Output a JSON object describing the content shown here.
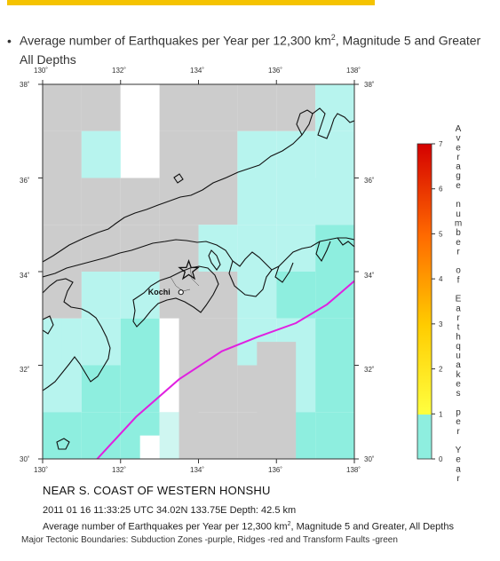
{
  "header": {
    "bullet": "•",
    "text_main": "Average number of Earthquakes per Year per 12,300 km",
    "text_sup": "2",
    "text_rest": ", Magnitude 5 and Greater",
    "text_line2": "All Depths"
  },
  "map": {
    "lon_labels_top": [
      "130˚",
      "132˚",
      "134˚",
      "136˚",
      "138˚"
    ],
    "lon_labels_bottom": [
      "130˚",
      "132˚",
      "134˚",
      "136˚",
      "138˚"
    ],
    "lat_labels_left": [
      "38˚",
      "36˚",
      "34˚",
      "32˚",
      "30˚"
    ],
    "lat_labels_right": [
      "38˚",
      "36˚",
      "34˚",
      "32˚",
      "30˚"
    ],
    "lon_range": [
      130,
      138
    ],
    "lat_range": [
      30,
      38
    ],
    "city": {
      "name": "Kochi",
      "lon": 133.55,
      "lat": 33.56
    },
    "epicenter": {
      "lon": 133.75,
      "lat": 34.02,
      "symbol": "star-icon"
    },
    "subduction_zone_color": "#e020e0",
    "subduction_zone": [
      [
        131.4,
        30.0
      ],
      [
        132.4,
        30.9
      ],
      [
        133.5,
        31.7
      ],
      [
        134.6,
        32.3
      ],
      [
        135.5,
        32.6
      ],
      [
        136.5,
        32.9
      ],
      [
        137.3,
        33.3
      ],
      [
        138.0,
        33.8
      ]
    ]
  },
  "colorbar": {
    "title_letters": [
      "A",
      "v",
      "e",
      "r",
      "a",
      "g",
      "e",
      "",
      "n",
      "u",
      "m",
      "b",
      "e",
      "r",
      "",
      "o",
      "f",
      "",
      "E",
      "a",
      "r",
      "t",
      "h",
      "q",
      "u",
      "a",
      "k",
      "e",
      "s",
      "",
      "p",
      "e",
      "r",
      "",
      "Y",
      "e",
      "a",
      "r"
    ],
    "ticks": [
      "0",
      "1",
      "2",
      "3",
      "4",
      "5",
      "6",
      "7"
    ],
    "range": [
      0,
      7
    ],
    "colors": {
      "zero_to_one": "#8eeedf",
      "one": "#ffff00",
      "three": "#ffcc00",
      "five": "#ff6600",
      "seven": "#e00000",
      "top": "#cc0000"
    }
  },
  "captions": {
    "title": "NEAR S. COAST OF WESTERN HONSHU",
    "event": "2011 01 16 11:33:25 UTC 34.02N 133.75E Depth: 42.5 km",
    "legend_main": "Average number of Earthquakes per Year per 12,300 km",
    "legend_sup": "2",
    "legend_rest": ", Magnitude 5 and Greater, All Depths",
    "tectonic": "Major Tectonic Boundaries: Subduction Zones -purple, Ridges -red and Transform Faults -green"
  },
  "colors": {
    "grid_gray": "#cccccc",
    "grid_white": "#ffffff",
    "grid_cyan_light": "#b7f4ee",
    "grid_cyan": "#8eeedf",
    "grid_cyan_pale": "#cff6f1"
  }
}
